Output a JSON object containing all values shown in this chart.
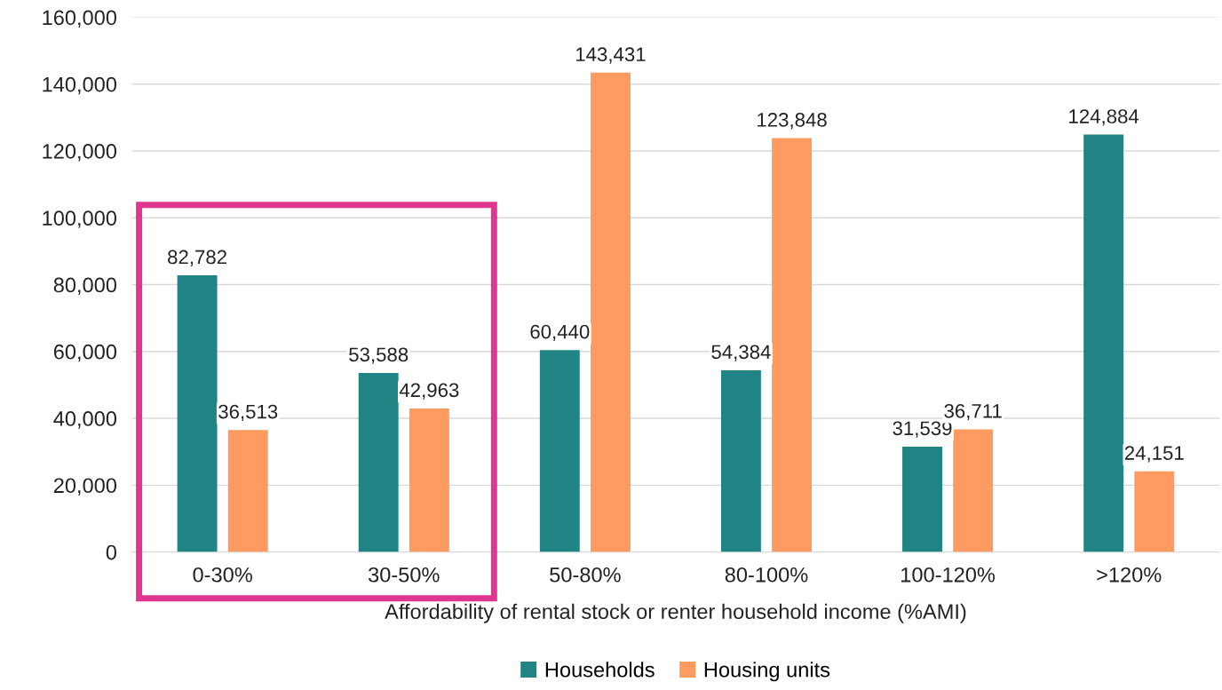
{
  "chart_data": {
    "type": "bar",
    "xlabel": "Affordability of rental stock or renter household income (%AMI)",
    "categories": [
      "0-30%",
      "30-50%",
      "50-80%",
      "80-100%",
      "100-120%",
      ">120%"
    ],
    "series": [
      {
        "name": "Households",
        "color": "#218484",
        "values": [
          82782,
          53588,
          60440,
          54384,
          31539,
          124884
        ]
      },
      {
        "name": "Housing units",
        "color": "#ff9b61",
        "values": [
          36513,
          42963,
          143431,
          123848,
          36711,
          24151
        ]
      }
    ],
    "ylim": [
      0,
      160000
    ],
    "yticks": [
      {
        "value": 0,
        "label": "0"
      },
      {
        "value": 20000,
        "label": "20,000"
      },
      {
        "value": 40000,
        "label": "40,000"
      },
      {
        "value": 60000,
        "label": "60,000"
      },
      {
        "value": 80000,
        "label": "80,000"
      },
      {
        "value": 100000,
        "label": "100,000"
      },
      {
        "value": 120000,
        "label": "120,000"
      },
      {
        "value": 140000,
        "label": "140,000"
      },
      {
        "value": 160000,
        "label": "160,000"
      }
    ],
    "grid": "y",
    "legend": "bottom",
    "value_labels": [
      [
        "82,782",
        "53,588",
        "60,440",
        "54,384",
        "31,539",
        "124,884"
      ],
      [
        "36,513",
        "42,963",
        "143,431",
        "123,848",
        "36,711",
        "24,151"
      ]
    ]
  }
}
